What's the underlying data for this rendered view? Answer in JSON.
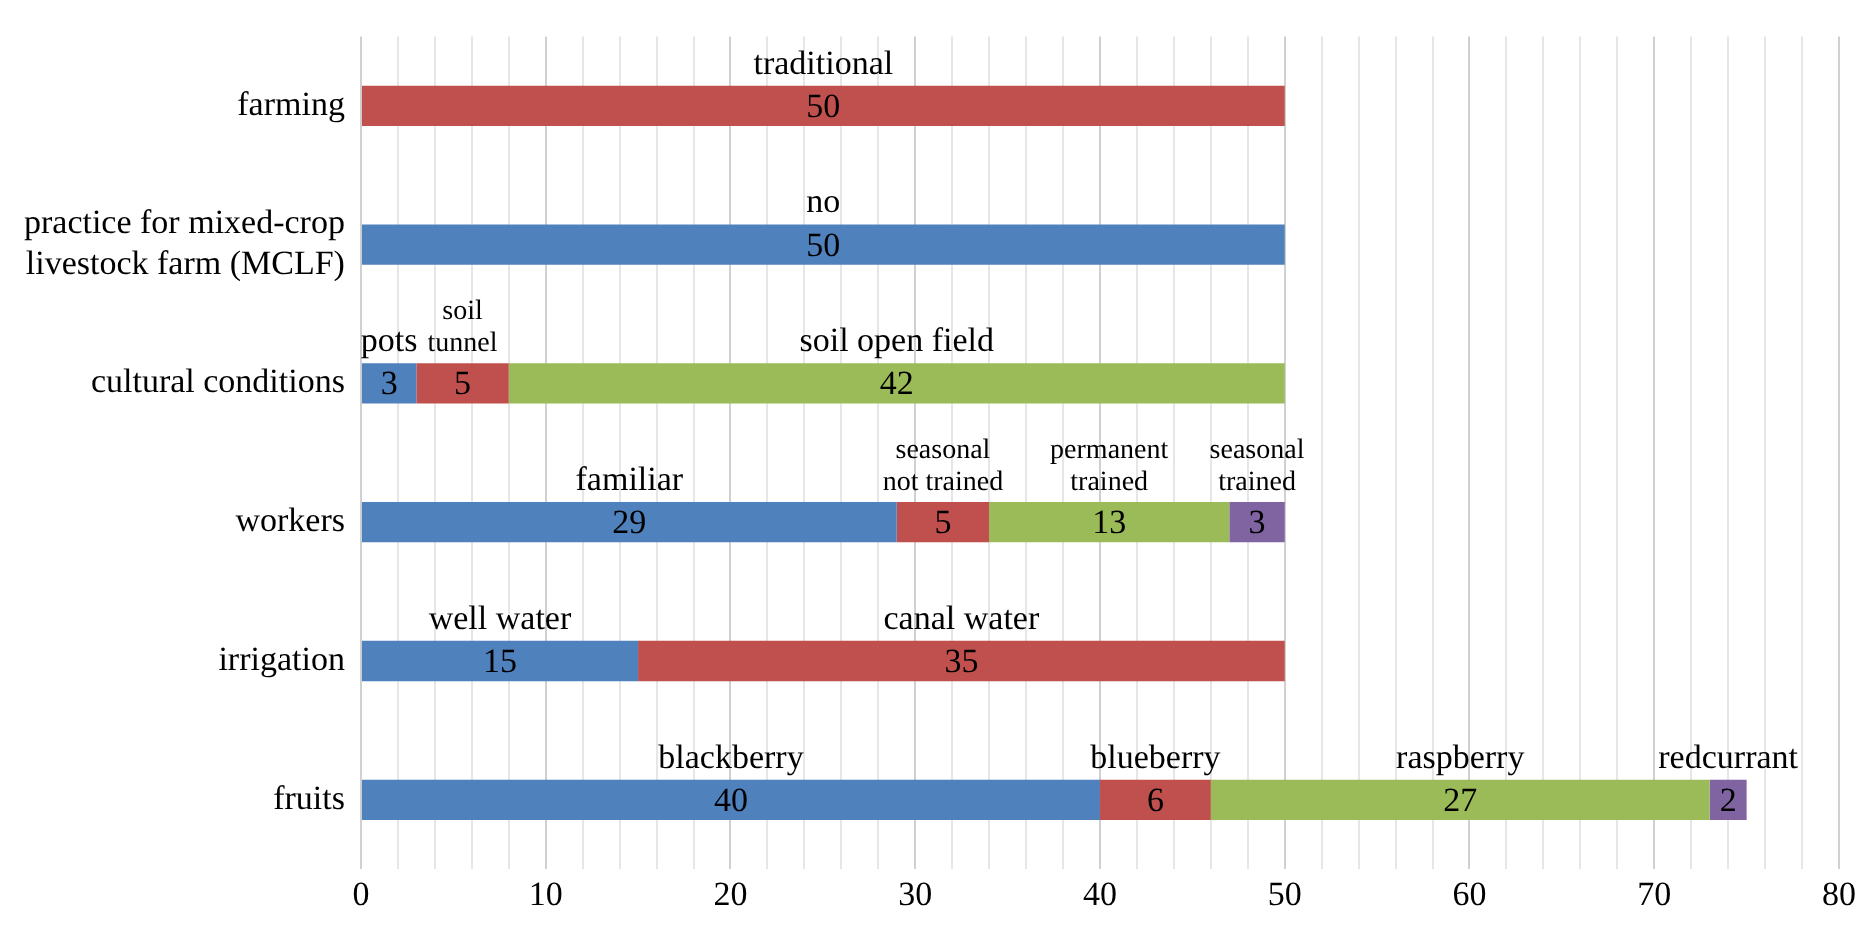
{
  "chart_data": {
    "type": "bar",
    "orientation": "horizontal",
    "stacked": true,
    "categories": [
      "farming",
      "practice for mixed-crop livestock farm (MCLF)",
      "cultural conditions",
      "workers",
      "irrigation",
      "fruits"
    ],
    "series": [
      {
        "colors": [
          "#c0504d",
          "#4f81bd",
          "#4f81bd",
          "#4f81bd",
          "#4f81bd",
          "#4f81bd"
        ],
        "values": [
          50,
          50,
          3,
          29,
          15,
          40
        ]
      },
      {
        "color": "#c0504d",
        "values": [
          null,
          null,
          5,
          5,
          35,
          6
        ]
      },
      {
        "color": "#9bbb59",
        "values": [
          null,
          null,
          42,
          13,
          null,
          27
        ]
      },
      {
        "color": "#8064a2",
        "values": [
          null,
          null,
          null,
          3,
          null,
          2
        ]
      }
    ],
    "xlim": [
      0,
      80
    ],
    "xticks": [
      0,
      {
        "value": 2,
        "label": null
      },
      {
        "value": 4,
        "label": null
      },
      {
        "value": 6,
        "label": null
      },
      {
        "value": 8,
        "label": null
      },
      10,
      {
        "value": 12,
        "label": null
      },
      {
        "value": 14,
        "label": null
      },
      {
        "value": 16,
        "label": null
      },
      {
        "value": 18,
        "label": null
      },
      20,
      {
        "value": 22,
        "label": null
      },
      {
        "value": 24,
        "label": null
      },
      {
        "value": 26,
        "label": null
      },
      {
        "value": 28,
        "label": null
      },
      30,
      {
        "value": 32,
        "label": null
      },
      {
        "value": 34,
        "label": null
      },
      {
        "value": 36,
        "label": null
      },
      {
        "value": 38,
        "label": null
      },
      40,
      {
        "value": 42,
        "label": null
      },
      {
        "value": 44,
        "label": null
      },
      {
        "value": 46,
        "label": null
      },
      {
        "value": 48,
        "label": null
      },
      50,
      {
        "value": 52,
        "label": null
      },
      {
        "value": 54,
        "label": null
      },
      {
        "value": 56,
        "label": null
      },
      {
        "value": 58,
        "label": null
      },
      60,
      {
        "value": 62,
        "label": null
      },
      {
        "value": 64,
        "label": null
      },
      {
        "value": 66,
        "label": null
      },
      {
        "value": 68,
        "label": null
      },
      70,
      {
        "value": 72,
        "label": null
      },
      {
        "value": 74,
        "label": null
      },
      {
        "value": 76,
        "label": null
      },
      {
        "value": 78,
        "label": null
      },
      80
    ],
    "grid": "x",
    "legend": false,
    "data_labels": true,
    "annotations": [
      "traditional",
      "no",
      "pots",
      "soil tunnel",
      "soil open field",
      "familiar",
      "seasonal not trained",
      "permanent trained",
      "seasonal trained",
      "well water",
      "canal water",
      "blackberry",
      "blueberry",
      "raspberry",
      "redcurrant"
    ]
  }
}
